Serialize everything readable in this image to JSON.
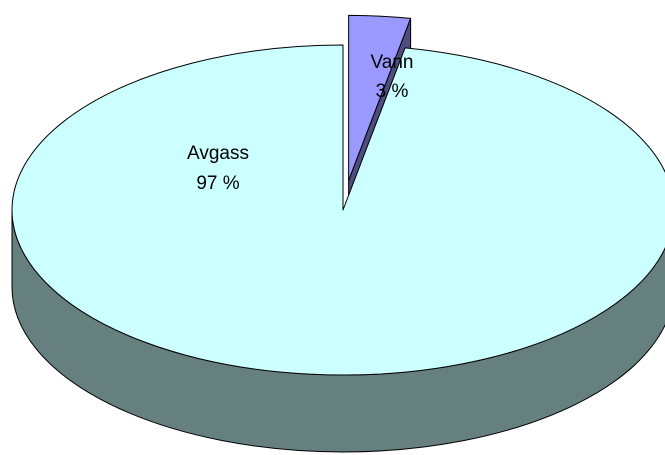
{
  "chart_data": {
    "type": "pie",
    "categories": [
      "Avgass",
      "Vann"
    ],
    "values": [
      97,
      3
    ],
    "value_labels": [
      "97 %",
      "3 %"
    ],
    "colors": [
      "#ccffff",
      "#9999ff"
    ],
    "side_colors": [
      "#668080",
      "#4d4d80"
    ],
    "exploded": [
      false,
      true
    ]
  }
}
